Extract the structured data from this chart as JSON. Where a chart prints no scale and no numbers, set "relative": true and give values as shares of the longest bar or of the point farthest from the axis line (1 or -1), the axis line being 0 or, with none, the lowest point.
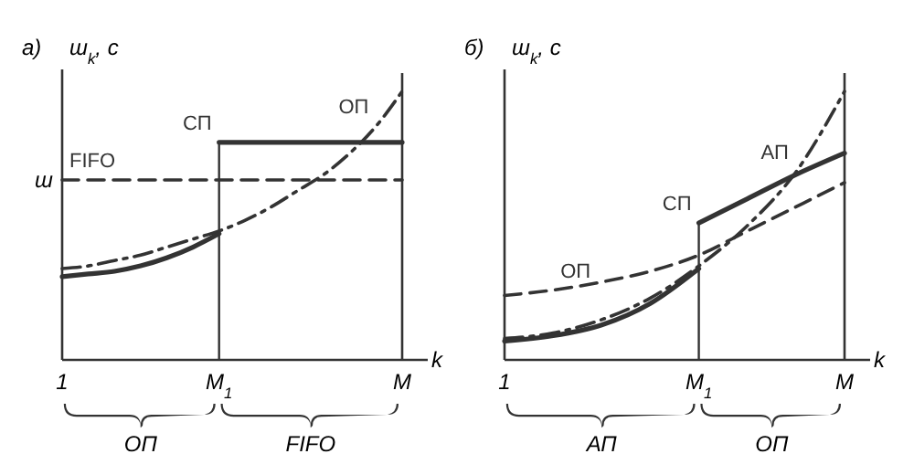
{
  "chart_data": [
    {
      "type": "line",
      "title": "а)",
      "ylabel": "ш$_{k}$, с",
      "xlabel": "k",
      "relative": true,
      "categories": [
        "1",
        null,
        null,
        null,
        null,
        null,
        "M$_{1}$",
        null,
        null,
        null,
        null,
        null,
        null,
        "M"
      ],
      "series": [
        {
          "name": "FIFO",
          "color": "#333333",
          "line_style": "dashed",
          "values": [
            0.67,
            0.67,
            0.67,
            0.67,
            0.67,
            0.67,
            0.67,
            0.67,
            0.67,
            0.67,
            0.67,
            0.67,
            0.67,
            0.67
          ]
        },
        {
          "name": "ОП",
          "color": "#333333",
          "line_style": "dashdot",
          "values": [
            0.34,
            0.35,
            0.37,
            0.39,
            0.42,
            0.45,
            0.48,
            0.52,
            0.57,
            0.63,
            0.69,
            0.77,
            0.87,
            1.0
          ]
        },
        {
          "color": "#333333",
          "line_style": "solid",
          "values": [
            0.31,
            0.32,
            0.33,
            0.35,
            0.38,
            0.42,
            0.47,
            null,
            null,
            null,
            null,
            null,
            null,
            null
          ]
        },
        {
          "name": "СП",
          "color": "#333333",
          "line_style": "solid",
          "values": [
            null,
            null,
            null,
            null,
            null,
            null,
            0.81,
            0.81,
            0.81,
            0.81,
            0.81,
            0.81,
            0.81,
            0.81
          ]
        }
      ],
      "ref_lines": [
        {
          "axis": "x",
          "value": "M$_{1}$",
          "color": "#333333"
        }
      ],
      "annotations": [
        "ш",
        "ОП",
        "FIFO"
      ]
    },
    {
      "type": "line",
      "title": "б)",
      "ylabel": "ш$_{k}$, с",
      "xlabel": "k",
      "relative": true,
      "categories": [
        "1",
        null,
        null,
        null,
        "M$_{1}$",
        null,
        null,
        "M"
      ],
      "series": [
        {
          "name": "ОП",
          "color": "#333333",
          "line_style": "dashed",
          "values": [
            0.24,
            0.26,
            0.29,
            0.33,
            0.39,
            0.48,
            0.57,
            0.66
          ]
        },
        {
          "name": "АП",
          "color": "#333333",
          "line_style": "dashdot",
          "values": [
            0.08,
            0.1,
            0.15,
            0.23,
            0.35,
            0.5,
            0.7,
            1.0
          ]
        },
        {
          "color": "#333333",
          "line_style": "solid",
          "values": [
            0.07,
            0.09,
            0.13,
            0.21,
            0.34,
            null,
            null,
            null
          ]
        },
        {
          "name": "СП",
          "color": "#333333",
          "line_style": "solid",
          "values": [
            null,
            null,
            null,
            null,
            0.51,
            0.6,
            0.69,
            0.77
          ]
        }
      ],
      "ref_lines": [
        {
          "axis": "x",
          "value": "M$_{1}$",
          "color": "#333333"
        }
      ],
      "annotations": [
        "АП",
        "ОП"
      ]
    }
  ]
}
